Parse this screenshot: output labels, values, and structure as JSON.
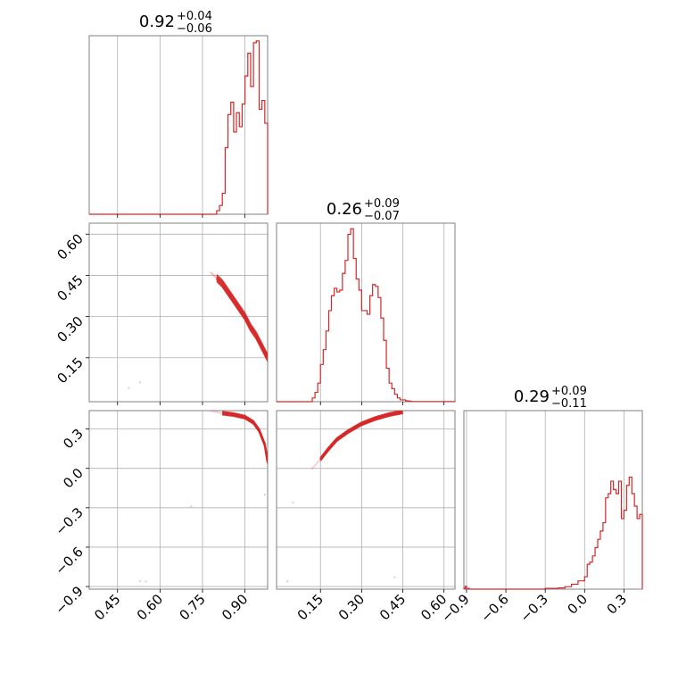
{
  "colors": {
    "series": "#d62728",
    "grid": "#b0b0b0",
    "frame": "#808080"
  },
  "chart_data": {
    "type": "corner",
    "parameters": [
      {
        "title_value": "0.92",
        "title_upper": "+0.04",
        "title_lower": "−0.06",
        "range": [
          0.35,
          0.98
        ]
      },
      {
        "title_value": "0.26",
        "title_upper": "+0.09",
        "title_lower": "−0.07",
        "range": [
          -0.01,
          0.64
        ]
      },
      {
        "title_value": "0.29",
        "title_upper": "+0.09",
        "title_lower": "−0.11",
        "range": [
          -0.92,
          0.44
        ]
      }
    ],
    "ticks": [
      {
        "values": [
          0.45,
          0.6,
          0.75,
          0.9
        ],
        "labels": [
          "0.45",
          "0.60",
          "0.75",
          "0.90"
        ]
      },
      {
        "values": [
          0.15,
          0.3,
          0.45,
          0.6
        ],
        "labels": [
          "0.15",
          "0.30",
          "0.45",
          "0.60"
        ]
      },
      {
        "values": [
          -0.9,
          -0.6,
          -0.3,
          0.0,
          0.3
        ],
        "labels": [
          "−0.9",
          "−0.6",
          "−0.3",
          "0.0",
          "0.3"
        ]
      }
    ],
    "grid": true,
    "histograms": [
      {
        "param": 0,
        "ymax": 1.02,
        "edges": [
          0.35,
          0.8,
          0.81,
          0.82,
          0.83,
          0.84,
          0.85,
          0.86,
          0.87,
          0.88,
          0.89,
          0.9,
          0.91,
          0.92,
          0.93,
          0.94,
          0.95,
          0.96,
          0.97,
          0.98
        ],
        "counts": [
          0,
          0.02,
          0.05,
          0.12,
          0.38,
          0.57,
          0.64,
          0.47,
          0.58,
          0.5,
          0.63,
          0.79,
          0.92,
          0.73,
          0.98,
          0.99,
          0.6,
          0.65,
          0.52
        ]
      },
      {
        "param": 1,
        "ymax": 0.96,
        "edges": [
          -0.01,
          0.12,
          0.13,
          0.14,
          0.15,
          0.16,
          0.17,
          0.18,
          0.19,
          0.2,
          0.21,
          0.22,
          0.23,
          0.24,
          0.25,
          0.26,
          0.27,
          0.28,
          0.29,
          0.3,
          0.31,
          0.32,
          0.33,
          0.34,
          0.35,
          0.36,
          0.37,
          0.38,
          0.39,
          0.4,
          0.41,
          0.42,
          0.43,
          0.44,
          0.45,
          0.46,
          0.47,
          0.48,
          0.64
        ],
        "counts": [
          0,
          0.02,
          0.05,
          0.1,
          0.2,
          0.28,
          0.38,
          0.49,
          0.57,
          0.61,
          0.59,
          0.6,
          0.69,
          0.76,
          0.9,
          0.93,
          0.77,
          0.66,
          0.6,
          0.49,
          0.49,
          0.47,
          0.57,
          0.63,
          0.62,
          0.56,
          0.45,
          0.33,
          0.18,
          0.1,
          0.07,
          0.04,
          0.02,
          0.01,
          0.01,
          0.005,
          0.003,
          0.001
        ]
      },
      {
        "param": 2,
        "ymax": 0.43,
        "edges": [
          -0.92,
          -0.91,
          -0.9,
          -0.88,
          -0.3,
          -0.2,
          -0.15,
          -0.1,
          -0.05,
          0.0,
          0.02,
          0.04,
          0.06,
          0.08,
          0.1,
          0.12,
          0.14,
          0.16,
          0.18,
          0.2,
          0.22,
          0.24,
          0.26,
          0.28,
          0.3,
          0.32,
          0.34,
          0.36,
          0.38,
          0.4,
          0.42,
          0.44
        ],
        "counts": [
          0.002,
          0.007,
          0.002,
          0,
          0.002,
          0.003,
          0.006,
          0.012,
          0.02,
          0.03,
          0.06,
          0.065,
          0.08,
          0.1,
          0.12,
          0.14,
          0.16,
          0.22,
          0.23,
          0.26,
          0.24,
          0.23,
          0.26,
          0.17,
          0.19,
          0.25,
          0.27,
          0.23,
          0.2,
          0.17,
          0.18
        ]
      }
    ],
    "pair_samples": [
      {
        "x_param": 0,
        "y_param": 1,
        "x": [
          0.78,
          0.8,
          0.82,
          0.84,
          0.86,
          0.88,
          0.9,
          0.92,
          0.94,
          0.96,
          0.98
        ],
        "y": [
          0.46,
          0.44,
          0.42,
          0.39,
          0.36,
          0.33,
          0.3,
          0.26,
          0.23,
          0.19,
          0.15
        ]
      },
      {
        "x_param": 0,
        "y_param": 2,
        "x": [
          0.78,
          0.82,
          0.86,
          0.9,
          0.93,
          0.95,
          0.97,
          0.98
        ],
        "y": [
          0.44,
          0.42,
          0.41,
          0.39,
          0.35,
          0.29,
          0.18,
          0.05
        ]
      },
      {
        "x_param": 1,
        "y_param": 2,
        "x": [
          0.12,
          0.15,
          0.18,
          0.21,
          0.25,
          0.3,
          0.35,
          0.4,
          0.45
        ],
        "y": [
          0.0,
          0.07,
          0.15,
          0.22,
          0.28,
          0.34,
          0.38,
          0.41,
          0.43
        ]
      }
    ],
    "outliers": [
      {
        "x_param": 0,
        "y_param": 1,
        "points": [
          [
            0.49,
            0.04
          ],
          [
            0.53,
            0.06
          ]
        ]
      },
      {
        "x_param": 0,
        "y_param": 2,
        "points": [
          [
            0.53,
            -0.86
          ],
          [
            0.55,
            -0.86
          ],
          [
            0.71,
            -0.29
          ],
          [
            0.97,
            -0.2
          ]
        ]
      },
      {
        "x_param": 1,
        "y_param": 2,
        "points": [
          [
            0.03,
            -0.86
          ],
          [
            0.05,
            -0.26
          ],
          [
            0.42,
            -0.83
          ]
        ]
      }
    ]
  }
}
